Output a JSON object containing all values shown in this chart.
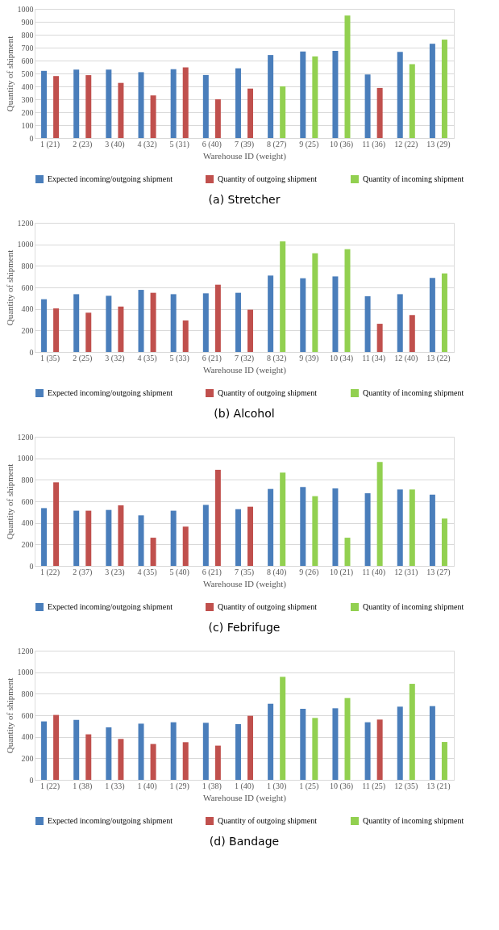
{
  "chart_data": [
    {
      "type": "bar",
      "title": "(a) Stretcher",
      "xlabel": "Warehouse ID (weight)",
      "ylabel": "Quantity of shipment",
      "categories": [
        "1 (21)",
        "2 (23)",
        "3 (40)",
        "4 (32)",
        "5 (31)",
        "6 (40)",
        "7 (39)",
        "8 (27)",
        "9 (25)",
        "10 (36)",
        "11 (36)",
        "12 (22)",
        "13 (29)"
      ],
      "series": [
        {
          "name": "Expected incoming/outgoing shipment",
          "color": "#4a7ebb",
          "values": [
            520,
            530,
            530,
            510,
            533,
            488,
            540,
            643,
            670,
            675,
            492,
            667,
            730
          ]
        },
        {
          "name": "Quantity of outgoing shipment",
          "color": "#c0504d",
          "values": [
            480,
            487,
            427,
            330,
            547,
            300,
            383,
            null,
            null,
            null,
            388,
            null,
            null
          ]
        },
        {
          "name": "Quantity of incoming shipment",
          "color": "#92d050",
          "values": [
            null,
            null,
            null,
            null,
            null,
            null,
            null,
            400,
            632,
            948,
            null,
            572,
            762
          ]
        }
      ],
      "ylim": [
        0,
        1000
      ],
      "yticks": [
        0,
        100,
        200,
        300,
        400,
        500,
        600,
        700,
        800,
        900,
        1000
      ],
      "grid": "y",
      "legend": "bottom"
    },
    {
      "type": "bar",
      "title": "(b) Alcohol",
      "xlabel": "Warehouse ID (weight)",
      "ylabel": "Quantity of shipment",
      "categories": [
        "1 (35)",
        "2 (25)",
        "3 (32)",
        "4 (35)",
        "5 (33)",
        "6 (21)",
        "7 (32)",
        "8 (32)",
        "9 (39)",
        "10 (34)",
        "11 (34)",
        "12 (40)",
        "13 (22)"
      ],
      "series": [
        {
          "name": "Expected incoming/outgoing shipment",
          "color": "#4a7ebb",
          "values": [
            490,
            537,
            522,
            577,
            537,
            545,
            550,
            710,
            685,
            702,
            518,
            537,
            688
          ]
        },
        {
          "name": "Quantity of outgoing shipment",
          "color": "#c0504d",
          "values": [
            405,
            365,
            422,
            550,
            293,
            625,
            393,
            null,
            null,
            null,
            262,
            343,
            null
          ]
        },
        {
          "name": "Quantity of incoming shipment",
          "color": "#92d050",
          "values": [
            null,
            null,
            null,
            null,
            null,
            null,
            null,
            1028,
            917,
            955,
            null,
            null,
            730
          ]
        }
      ],
      "ylim": [
        0,
        1200
      ],
      "yticks": [
        0,
        200,
        400,
        600,
        800,
        1000,
        1200
      ],
      "grid": "y",
      "legend": "bottom"
    },
    {
      "type": "bar",
      "title": "(c) Febrifuge",
      "xlabel": "Warehouse ID (weight)",
      "ylabel": "Quantity of shipment",
      "categories": [
        "1 (22)",
        "2 (37)",
        "3 (23)",
        "4 (35)",
        "5 (40)",
        "6 (21)",
        "7 (35)",
        "8 (40)",
        "9 (26)",
        "10 (21)",
        "11 (40)",
        "12 (31)",
        "13 (27)"
      ],
      "series": [
        {
          "name": "Expected incoming/outgoing shipment",
          "color": "#4a7ebb",
          "values": [
            537,
            513,
            520,
            470,
            513,
            567,
            527,
            715,
            733,
            720,
            675,
            710,
            662
          ]
        },
        {
          "name": "Quantity of outgoing shipment",
          "color": "#c0504d",
          "values": [
            777,
            513,
            563,
            262,
            365,
            893,
            550,
            null,
            null,
            null,
            null,
            null,
            null
          ]
        },
        {
          "name": "Quantity of incoming shipment",
          "color": "#92d050",
          "values": [
            null,
            null,
            null,
            null,
            null,
            null,
            null,
            867,
            648,
            262,
            965,
            710,
            440
          ]
        }
      ],
      "ylim": [
        0,
        1200
      ],
      "yticks": [
        0,
        200,
        400,
        600,
        800,
        1000,
        1200
      ],
      "grid": "y",
      "legend": "bottom"
    },
    {
      "type": "bar",
      "title": "(d) Bandage",
      "xlabel": "Warehouse ID (weight)",
      "ylabel": "Quantity of shipment",
      "categories": [
        "1 (22)",
        "1 (38)",
        "1 (33)",
        "1 (40)",
        "1 (29)",
        "1 (38)",
        "1 (40)",
        "1 (30)",
        "1 (25)",
        "10 (36)",
        "11 (25)",
        "12 (35)",
        "13 (21)"
      ],
      "series": [
        {
          "name": "Expected incoming/outgoing shipment",
          "color": "#4a7ebb",
          "values": [
            543,
            557,
            488,
            522,
            535,
            530,
            518,
            707,
            660,
            665,
            535,
            680,
            685
          ]
        },
        {
          "name": "Quantity of outgoing shipment",
          "color": "#c0504d",
          "values": [
            603,
            423,
            380,
            333,
            350,
            318,
            595,
            null,
            null,
            null,
            560,
            null,
            null
          ]
        },
        {
          "name": "Quantity of incoming shipment",
          "color": "#92d050",
          "values": [
            null,
            null,
            null,
            null,
            null,
            null,
            null,
            957,
            575,
            760,
            null,
            892,
            352
          ]
        }
      ],
      "ylim": [
        0,
        1200
      ],
      "yticks": [
        0,
        200,
        400,
        600,
        800,
        1000,
        1200
      ],
      "grid": "y",
      "legend": "bottom"
    }
  ]
}
